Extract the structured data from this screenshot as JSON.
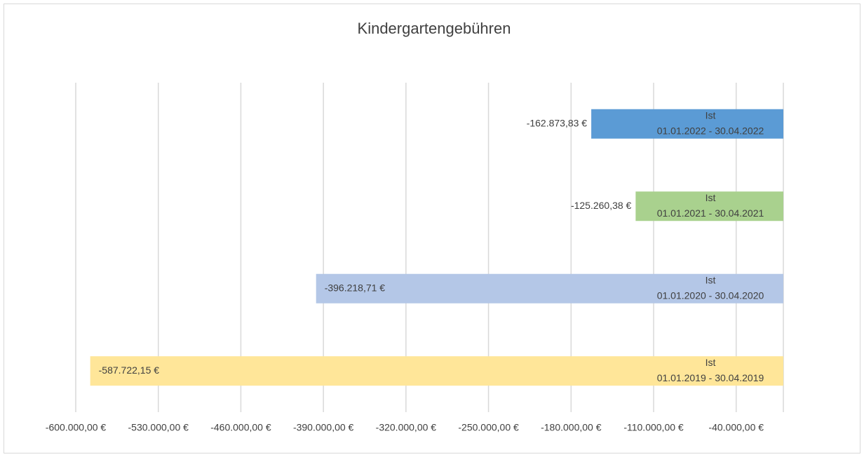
{
  "chart_data": {
    "type": "barh",
    "title": "Kindergartengebühren",
    "categories": [
      [
        "Ist",
        "01.01.2022 - 30.04.2022"
      ],
      [
        "Ist",
        "01.01.2021 - 30.04.2021"
      ],
      [
        "Ist",
        "01.01.2020 - 30.04.2020"
      ],
      [
        "Ist",
        "01.01.2019 - 30.04.2019"
      ]
    ],
    "values": [
      -162873.83,
      -125260.38,
      -396218.71,
      -587722.15
    ],
    "value_labels": [
      "-162.873,83 €",
      "-125.260,38 €",
      "-396.218,71 €",
      "-587.722,15 €"
    ],
    "colors": [
      "#5b9bd5",
      "#a9d18e",
      "#b4c7e7",
      "#ffe699"
    ],
    "xlim": [
      -600000,
      0
    ],
    "xticks": [
      {
        "value": -600000,
        "label": "-600.000,00 €"
      },
      {
        "value": -530000,
        "label": "-530.000,00 €"
      },
      {
        "value": -460000,
        "label": "-460.000,00 €"
      },
      {
        "value": -390000,
        "label": "-390.000,00 €"
      },
      {
        "value": -320000,
        "label": "-320.000,00 €"
      },
      {
        "value": -250000,
        "label": "-250.000,00 €"
      },
      {
        "value": -180000,
        "label": "-180.000,00 €"
      },
      {
        "value": -110000,
        "label": "-110.000,00 €"
      },
      {
        "value": -40000,
        "label": "-40.000,00 €"
      }
    ],
    "grid": true
  }
}
